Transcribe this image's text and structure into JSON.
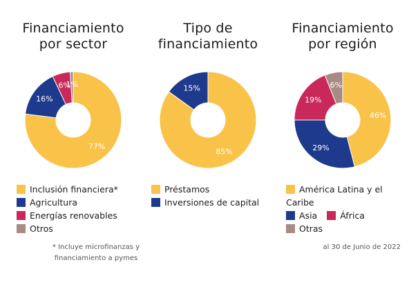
{
  "colors": {
    "yellow": "#F9C34A",
    "blue": "#1E3A8C",
    "crimson": "#C8285A",
    "mauve": "#A98A85"
  },
  "titles": {
    "sector_line1": "Financiamiento",
    "sector_line2": "por sector",
    "tipo_line1": "Tipo de",
    "tipo_line2": "financiamiento",
    "region_line1": "Financiamiento",
    "region_line2": "por región"
  },
  "chart_data": [
    {
      "type": "pie",
      "title": "Financiamiento por sector",
      "slices": [
        {
          "name": "Inclusión financiera*",
          "value": 77,
          "label": "77%",
          "color": "#F9C34A"
        },
        {
          "name": "Agricultura",
          "value": 16,
          "label": "16%",
          "color": "#1E3A8C"
        },
        {
          "name": "Energías renovables",
          "value": 6,
          "label": "6%",
          "color": "#C8285A"
        },
        {
          "name": "Otros",
          "value": 1,
          "label": "1%",
          "color": "#A98A85"
        }
      ]
    },
    {
      "type": "pie",
      "title": "Tipo de financiamiento",
      "slices": [
        {
          "name": "Préstamos",
          "value": 85,
          "label": "85%",
          "color": "#F9C34A"
        },
        {
          "name": "Inversiones de capital",
          "value": 15,
          "label": "15%",
          "color": "#1E3A8C"
        }
      ]
    },
    {
      "type": "pie",
      "title": "Financiamiento por región",
      "slices": [
        {
          "name": "América Latina y el Caribe",
          "value": 46,
          "label": "46%",
          "color": "#F9C34A"
        },
        {
          "name": "Asia",
          "value": 29,
          "label": "29%",
          "color": "#1E3A8C"
        },
        {
          "name": "África",
          "value": 19,
          "label": "19%",
          "color": "#C8285A"
        },
        {
          "name": "Otras",
          "value": 6,
          "label": "6%",
          "color": "#A98A85"
        }
      ]
    }
  ],
  "legends": {
    "sector": [
      "Inclusión financiera*",
      "Agricultura",
      "Energías renovables",
      "Otros"
    ],
    "tipo": [
      "Préstamos",
      "Inversiones de capital"
    ],
    "region": [
      "América Latina y el",
      "Caribe",
      "Asia",
      "África",
      "Otras"
    ]
  },
  "footnotes": {
    "sector_line1": "* Incluye microfinanzas y",
    "sector_line2": "financiamiento a pymes",
    "date": "al 30 de Junio de 2022"
  }
}
